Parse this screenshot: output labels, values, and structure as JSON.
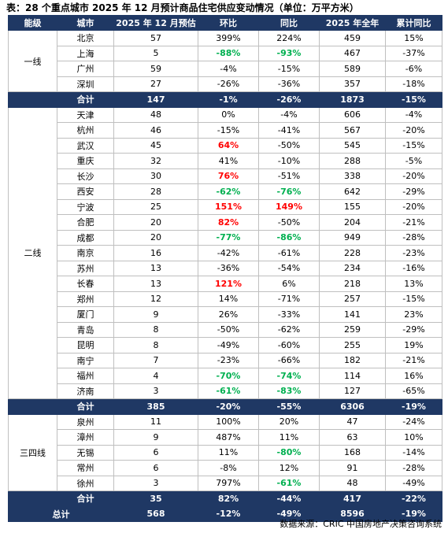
{
  "title": "表：28 个重点城市 2025 年 12 月预计商品住宅供应变动情况（单位：万平方米）",
  "headers": [
    "能级",
    "城市",
    "2025 年 12 月预估",
    "环比",
    "同比",
    "2025 年全年",
    "累计同比"
  ],
  "colors": {
    "header_bg": "#1f3864",
    "positive_highlight": "#ff0000",
    "negative_highlight": "#00b050"
  },
  "groups": [
    {
      "level": "一线",
      "rows": [
        {
          "city": "北京",
          "dec": "57",
          "mom": "399%",
          "yoy": "224%",
          "annual": "459",
          "cum": "15%"
        },
        {
          "city": "上海",
          "dec": "5",
          "mom": "-88%",
          "mom_hl": "green",
          "yoy": "-93%",
          "yoy_hl": "green",
          "annual": "467",
          "cum": "-37%"
        },
        {
          "city": "广州",
          "dec": "59",
          "mom": "-4%",
          "yoy": "-15%",
          "annual": "589",
          "cum": "-6%"
        },
        {
          "city": "深圳",
          "dec": "27",
          "mom": "-26%",
          "yoy": "-36%",
          "annual": "357",
          "cum": "-18%"
        }
      ],
      "subtotal": {
        "label": "合计",
        "dec": "147",
        "mom": "-1%",
        "yoy": "-26%",
        "annual": "1873",
        "cum": "-15%"
      }
    },
    {
      "level": "二线",
      "rows": [
        {
          "city": "天津",
          "dec": "48",
          "mom": "0%",
          "yoy": "-4%",
          "annual": "606",
          "cum": "-4%"
        },
        {
          "city": "杭州",
          "dec": "46",
          "mom": "-15%",
          "yoy": "-41%",
          "annual": "567",
          "cum": "-20%"
        },
        {
          "city": "武汉",
          "dec": "45",
          "mom": "64%",
          "mom_hl": "red",
          "yoy": "-50%",
          "annual": "545",
          "cum": "-15%"
        },
        {
          "city": "重庆",
          "dec": "32",
          "mom": "41%",
          "yoy": "-10%",
          "annual": "288",
          "cum": "-5%"
        },
        {
          "city": "长沙",
          "dec": "30",
          "mom": "76%",
          "mom_hl": "red",
          "yoy": "-51%",
          "annual": "338",
          "cum": "-20%"
        },
        {
          "city": "西安",
          "dec": "28",
          "mom": "-62%",
          "mom_hl": "green",
          "yoy": "-76%",
          "yoy_hl": "green",
          "annual": "642",
          "cum": "-29%"
        },
        {
          "city": "宁波",
          "dec": "25",
          "mom": "151%",
          "mom_hl": "red",
          "yoy": "149%",
          "yoy_hl": "red",
          "annual": "155",
          "cum": "-20%"
        },
        {
          "city": "合肥",
          "dec": "20",
          "mom": "82%",
          "mom_hl": "red",
          "yoy": "-50%",
          "annual": "204",
          "cum": "-21%"
        },
        {
          "city": "成都",
          "dec": "20",
          "mom": "-77%",
          "mom_hl": "green",
          "yoy": "-86%",
          "yoy_hl": "green",
          "annual": "949",
          "cum": "-28%"
        },
        {
          "city": "南京",
          "dec": "16",
          "mom": "-42%",
          "yoy": "-61%",
          "annual": "228",
          "cum": "-23%"
        },
        {
          "city": "苏州",
          "dec": "13",
          "mom": "-36%",
          "yoy": "-54%",
          "annual": "234",
          "cum": "-16%"
        },
        {
          "city": "长春",
          "dec": "13",
          "mom": "121%",
          "mom_hl": "red",
          "yoy": "6%",
          "annual": "218",
          "cum": "13%"
        },
        {
          "city": "郑州",
          "dec": "12",
          "mom": "14%",
          "yoy": "-71%",
          "annual": "257",
          "cum": "-15%"
        },
        {
          "city": "厦门",
          "dec": "9",
          "mom": "26%",
          "yoy": "-33%",
          "annual": "141",
          "cum": "23%"
        },
        {
          "city": "青岛",
          "dec": "8",
          "mom": "-50%",
          "yoy": "-62%",
          "annual": "259",
          "cum": "-29%"
        },
        {
          "city": "昆明",
          "dec": "8",
          "mom": "-49%",
          "yoy": "-60%",
          "annual": "255",
          "cum": "19%"
        },
        {
          "city": "南宁",
          "dec": "7",
          "mom": "-23%",
          "yoy": "-66%",
          "annual": "182",
          "cum": "-21%"
        },
        {
          "city": "福州",
          "dec": "4",
          "mom": "-70%",
          "mom_hl": "green",
          "yoy": "-74%",
          "yoy_hl": "green",
          "annual": "114",
          "cum": "16%"
        },
        {
          "city": "济南",
          "dec": "3",
          "mom": "-61%",
          "mom_hl": "green",
          "yoy": "-83%",
          "yoy_hl": "green",
          "annual": "127",
          "cum": "-65%"
        }
      ],
      "subtotal": {
        "label": "合计",
        "dec": "385",
        "mom": "-20%",
        "yoy": "-55%",
        "annual": "6306",
        "cum": "-19%"
      }
    },
    {
      "level": "三四线",
      "rows": [
        {
          "city": "泉州",
          "dec": "11",
          "mom": "100%",
          "yoy": "20%",
          "annual": "47",
          "cum": "-24%"
        },
        {
          "city": "漳州",
          "dec": "9",
          "mom": "487%",
          "yoy": "11%",
          "annual": "63",
          "cum": "10%"
        },
        {
          "city": "无锡",
          "dec": "6",
          "mom": "11%",
          "yoy": "-80%",
          "yoy_hl": "green",
          "annual": "168",
          "cum": "-14%"
        },
        {
          "city": "常州",
          "dec": "6",
          "mom": "-8%",
          "yoy": "12%",
          "annual": "91",
          "cum": "-28%"
        },
        {
          "city": "徐州",
          "dec": "3",
          "mom": "797%",
          "yoy": "-61%",
          "yoy_hl": "green",
          "annual": "48",
          "cum": "-49%"
        }
      ],
      "subtotal": {
        "label": "合计",
        "dec": "35",
        "mom": "82%",
        "yoy": "-44%",
        "annual": "417",
        "cum": "-22%"
      }
    }
  ],
  "total": {
    "label": "总计",
    "dec": "568",
    "mom": "-12%",
    "yoy": "-49%",
    "annual": "8596",
    "cum": "-19%"
  },
  "source": "数据来源：CRIC 中国房地产决策咨询系统"
}
